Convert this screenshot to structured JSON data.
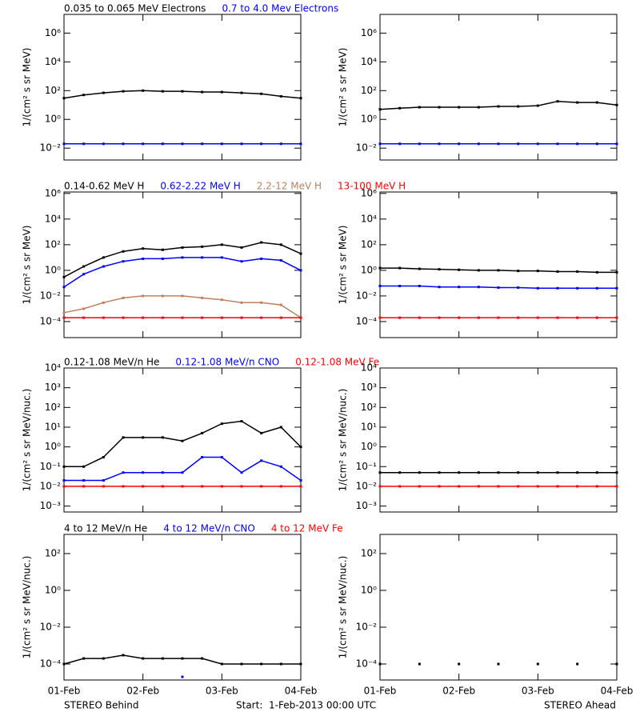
{
  "chart_data": [
    {
      "type": "line",
      "log": true,
      "ylabel": "1/(cm² s sr MeV)",
      "xlim": [
        0,
        72
      ],
      "xticks": [
        0,
        24,
        48,
        72
      ],
      "ylim": [
        0.0015,
        20000000
      ],
      "yticks": [
        {
          "value": 0.01,
          "label": "10⁻²"
        },
        {
          "value": 1,
          "label": "10⁰"
        },
        {
          "value": 100,
          "label": "10²"
        },
        {
          "value": 10000,
          "label": "10⁴"
        },
        {
          "value": 1000000,
          "label": "10⁶"
        }
      ],
      "x": [
        0,
        6,
        12,
        18,
        24,
        30,
        36,
        42,
        48,
        54,
        60,
        66,
        72
      ],
      "series": [
        {
          "name": "0.035 to 0.065 MeV Electrons",
          "color": "#000000",
          "values": [
            30,
            50,
            70,
            90,
            100,
            90,
            90,
            80,
            80,
            70,
            60,
            40,
            30
          ]
        },
        {
          "name": "0.7 to 4.0 Mev Electrons",
          "color": "#0000ff",
          "values": [
            0.02,
            0.02,
            0.02,
            0.02,
            0.02,
            0.02,
            0.02,
            0.02,
            0.02,
            0.02,
            0.02,
            0.02,
            0.02
          ]
        }
      ]
    },
    {
      "type": "line",
      "log": true,
      "ylabel": "1/(cm² s sr MeV)",
      "xlim": [
        0,
        72
      ],
      "xticks": [
        0,
        24,
        48,
        72
      ],
      "ylim": [
        0.0015,
        20000000
      ],
      "yticks": [
        {
          "value": 0.01,
          "label": "10⁻²"
        },
        {
          "value": 1,
          "label": "10⁰"
        },
        {
          "value": 100,
          "label": "10²"
        },
        {
          "value": 10000,
          "label": "10⁴"
        },
        {
          "value": 1000000,
          "label": "10⁶"
        }
      ],
      "x": [
        0,
        6,
        12,
        18,
        24,
        30,
        36,
        42,
        48,
        54,
        60,
        66,
        72
      ],
      "series": [
        {
          "color": "#000000",
          "values": [
            5,
            6,
            7,
            7,
            7,
            7,
            8,
            8,
            9,
            18,
            15,
            15,
            10
          ]
        },
        {
          "color": "#0000ff",
          "values": [
            0.02,
            0.02,
            0.02,
            0.02,
            0.02,
            0.02,
            0.02,
            0.02,
            0.02,
            0.02,
            0.02,
            0.02,
            0.02
          ]
        }
      ]
    },
    {
      "type": "line",
      "log": true,
      "ylabel": "1/(cm² s sr MeV)",
      "xlim": [
        0,
        72
      ],
      "xticks": [
        0,
        24,
        48,
        72
      ],
      "ylim": [
        5.6e-06,
        1300000
      ],
      "yticks": [
        {
          "value": 0.0001,
          "label": "10⁻⁴"
        },
        {
          "value": 0.01,
          "label": "10⁻²"
        },
        {
          "value": 1,
          "label": "10⁰"
        },
        {
          "value": 100,
          "label": "10²"
        },
        {
          "value": 10000,
          "label": "10⁴"
        },
        {
          "value": 1000000,
          "label": "10⁶"
        }
      ],
      "x": [
        0,
        6,
        12,
        18,
        24,
        30,
        36,
        42,
        48,
        54,
        60,
        66,
        72
      ],
      "series": [
        {
          "name": "0.14-0.62 MeV H",
          "color": "#000000",
          "values": [
            0.3,
            2,
            10,
            30,
            50,
            40,
            60,
            70,
            100,
            60,
            150,
            100,
            20
          ]
        },
        {
          "name": "0.62-2.22 MeV H",
          "color": "#0000ff",
          "values": [
            0.05,
            0.5,
            2,
            5,
            8,
            8,
            10,
            10,
            10,
            5,
            8,
            6,
            1
          ]
        },
        {
          "name": "2.2-12 MeV H",
          "color": "#c08060",
          "values": [
            0.0005,
            0.001,
            0.003,
            0.007,
            0.01,
            0.01,
            0.01,
            0.007,
            0.005,
            0.003,
            0.003,
            0.002,
            0.0002
          ]
        },
        {
          "name": "13-100 MeV H",
          "color": "#ff0000",
          "values": [
            0.0002,
            0.0002,
            0.0002,
            0.0002,
            0.0002,
            0.0002,
            0.0002,
            0.0002,
            0.0002,
            0.0002,
            0.0002,
            0.0002,
            0.0002
          ]
        }
      ]
    },
    {
      "type": "line",
      "log": true,
      "ylabel": "1/(cm² s sr MeV)",
      "xlim": [
        0,
        72
      ],
      "xticks": [
        0,
        24,
        48,
        72
      ],
      "ylim": [
        5.6e-06,
        1300000
      ],
      "yticks": [
        {
          "value": 0.0001,
          "label": "10⁻⁴"
        },
        {
          "value": 0.01,
          "label": "10⁻²"
        },
        {
          "value": 1,
          "label": "10⁰"
        },
        {
          "value": 100,
          "label": "10²"
        },
        {
          "value": 10000,
          "label": "10⁴"
        },
        {
          "value": 1000000,
          "label": "10⁶"
        }
      ],
      "x": [
        0,
        6,
        12,
        18,
        24,
        30,
        36,
        42,
        48,
        54,
        60,
        66,
        72
      ],
      "series": [
        {
          "color": "#000000",
          "values": [
            1.5,
            1.5,
            1.3,
            1.2,
            1.1,
            1,
            1,
            0.9,
            0.9,
            0.8,
            0.8,
            0.7,
            0.7
          ]
        },
        {
          "color": "#0000ff",
          "values": [
            0.06,
            0.06,
            0.06,
            0.05,
            0.05,
            0.05,
            0.045,
            0.045,
            0.04,
            0.04,
            0.04,
            0.04,
            0.04
          ]
        },
        {
          "color": "#ff0000",
          "values": [
            0.0002,
            0.0002,
            0.0002,
            0.0002,
            0.0002,
            0.0002,
            0.0002,
            0.0002,
            0.0002,
            0.0002,
            0.0002,
            0.0002,
            0.0002
          ]
        }
      ]
    },
    {
      "type": "line",
      "log": true,
      "ylabel": "1/(cm² s sr MeV/nuc.)",
      "xlim": [
        0,
        72
      ],
      "xticks": [
        0,
        24,
        48,
        72
      ],
      "ylim": [
        0.0005,
        10000
      ],
      "yticks": [
        {
          "value": 0.001,
          "label": "10⁻³"
        },
        {
          "value": 0.01,
          "label": "10⁻²"
        },
        {
          "value": 0.1,
          "label": "10⁻¹"
        },
        {
          "value": 1,
          "label": "10⁰"
        },
        {
          "value": 10,
          "label": "10¹"
        },
        {
          "value": 100,
          "label": "10²"
        },
        {
          "value": 1000,
          "label": "10³"
        },
        {
          "value": 10000,
          "label": "10⁴"
        }
      ],
      "x": [
        0,
        6,
        12,
        18,
        24,
        30,
        36,
        42,
        48,
        54,
        60,
        66,
        72
      ],
      "series": [
        {
          "name": "0.12-1.08 MeV/n He",
          "color": "#000000",
          "values": [
            0.1,
            0.1,
            0.3,
            3,
            3,
            3,
            2,
            5,
            15,
            20,
            5,
            10,
            1
          ]
        },
        {
          "name": "0.12-1.08 MeV/n CNO",
          "color": "#0000ff",
          "values": [
            0.02,
            0.02,
            0.02,
            0.05,
            0.05,
            0.05,
            0.05,
            0.3,
            0.3,
            0.05,
            0.2,
            0.1,
            0.02
          ]
        },
        {
          "name": "0.12-1.08 MeV Fe",
          "color": "#ff0000",
          "values": [
            0.01,
            0.01,
            0.01,
            0.01,
            0.01,
            0.01,
            0.01,
            0.01,
            0.01,
            0.01,
            0.01,
            0.01,
            0.01
          ]
        }
      ]
    },
    {
      "type": "line",
      "log": true,
      "ylabel": "1/(cm² s sr MeV/nuc.)",
      "xlim": [
        0,
        72
      ],
      "xticks": [
        0,
        24,
        48,
        72
      ],
      "ylim": [
        0.0005,
        10000
      ],
      "yticks": [
        {
          "value": 0.001,
          "label": "10⁻³"
        },
        {
          "value": 0.01,
          "label": "10⁻²"
        },
        {
          "value": 0.1,
          "label": "10⁻¹"
        },
        {
          "value": 1,
          "label": "10⁰"
        },
        {
          "value": 10,
          "label": "10¹"
        },
        {
          "value": 100,
          "label": "10²"
        },
        {
          "value": 1000,
          "label": "10³"
        },
        {
          "value": 10000,
          "label": "10⁴"
        }
      ],
      "x": [
        0,
        6,
        12,
        18,
        24,
        30,
        36,
        42,
        48,
        54,
        60,
        66,
        72
      ],
      "series": [
        {
          "color": "#000000",
          "values": [
            0.05,
            0.05,
            0.05,
            0.05,
            0.05,
            0.05,
            0.05,
            0.05,
            0.05,
            0.05,
            0.05,
            0.05,
            0.05
          ]
        },
        {
          "color": "#ff0000",
          "values": [
            0.01,
            0.01,
            0.01,
            0.01,
            0.01,
            0.01,
            0.01,
            0.01,
            0.01,
            0.01,
            0.01,
            0.01,
            0.01
          ]
        }
      ]
    },
    {
      "type": "line",
      "log": true,
      "ylabel": "1/(cm² s sr MeV/nuc.)",
      "xlim": [
        0,
        72
      ],
      "xticks": [
        {
          "value": 0,
          "label": "01-Feb"
        },
        {
          "value": 24,
          "label": "02-Feb"
        },
        {
          "value": 48,
          "label": "03-Feb"
        },
        {
          "value": 72,
          "label": "04-Feb"
        }
      ],
      "ylim": [
        1.35e-05,
        1100
      ],
      "yticks": [
        {
          "value": 0.0001,
          "label": "10⁻⁴"
        },
        {
          "value": 0.01,
          "label": "10⁻²"
        },
        {
          "value": 1,
          "label": "10⁰"
        },
        {
          "value": 100,
          "label": "10²"
        }
      ],
      "x": [
        0,
        6,
        12,
        18,
        24,
        30,
        36,
        42,
        48,
        54,
        60,
        66,
        72
      ],
      "series": [
        {
          "name": "4 to 12 MeV/n He",
          "color": "#000000",
          "values": [
            0.0001,
            0.0002,
            0.0002,
            0.0003,
            0.0002,
            0.0002,
            0.0002,
            0.0002,
            0.0001,
            0.0001,
            0.0001,
            0.0001,
            0.0001
          ]
        },
        {
          "name": "4 to 12 MeV/n CNO",
          "color": "#0000ff",
          "values": [
            null,
            null,
            null,
            null,
            null,
            null,
            2e-05,
            null,
            null,
            null,
            null,
            null,
            null
          ]
        },
        {
          "name": "4 to 12 MeV Fe",
          "color": "#ff0000",
          "values": [
            null,
            null,
            null,
            null,
            null,
            null,
            null,
            null,
            null,
            null,
            null,
            null,
            null
          ]
        }
      ]
    },
    {
      "type": "line",
      "log": true,
      "ylabel": "1/(cm² s sr MeV/nuc.)",
      "xlim": [
        0,
        72
      ],
      "xticks": [
        {
          "value": 0,
          "label": "01-Feb"
        },
        {
          "value": 24,
          "label": "02-Feb"
        },
        {
          "value": 48,
          "label": "03-Feb"
        },
        {
          "value": 72,
          "label": "04-Feb"
        }
      ],
      "ylim": [
        1.35e-05,
        1100
      ],
      "yticks": [
        {
          "value": 0.0001,
          "label": "10⁻⁴"
        },
        {
          "value": 0.01,
          "label": "10⁻²"
        },
        {
          "value": 1,
          "label": "10⁰"
        },
        {
          "value": 100,
          "label": "10²"
        }
      ],
      "x": [
        0,
        6,
        12,
        18,
        24,
        30,
        36,
        42,
        48,
        54,
        60,
        66,
        72
      ],
      "series": [
        {
          "color": "#000000",
          "values": [
            0.0001,
            null,
            0.0001,
            null,
            0.0001,
            null,
            0.0001,
            null,
            0.0001,
            null,
            0.0001,
            null,
            0.0001
          ]
        }
      ]
    }
  ],
  "footer": {
    "left": "STEREO Behind",
    "center": "Start:  1-Feb-2013 00:00 UTC",
    "right": "STEREO Ahead"
  }
}
